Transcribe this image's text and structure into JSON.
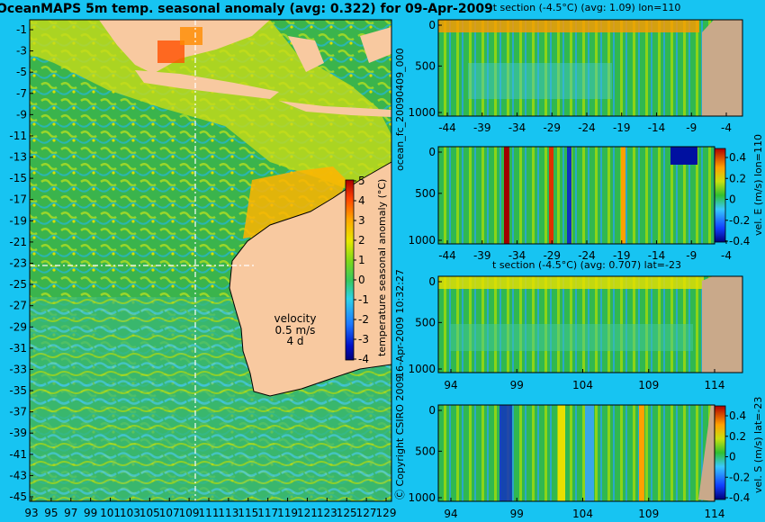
{
  "header": {
    "title": "OceanMAPS 5m temp. seasonal anomaly (avg: 0.322) for 09-Apr-2009"
  },
  "side_text": {
    "forecast_id": "ocean_fc_20090409_000",
    "run_date": "16-Apr-2009 10:32:27",
    "copyright": "Ⓒ Copyright CSIRO 2009"
  },
  "velocity_key": {
    "label": "velocity",
    "speed": "0.5 m/s",
    "second": "4 d"
  },
  "colors": {
    "background": "#17c4f2",
    "land": "#f8c9a0",
    "section_land": "#c9a98a",
    "crosshair": "#ffffff"
  },
  "chart_data": [
    {
      "id": "map",
      "type": "heatmap",
      "title": "OceanMAPS 5m temp. seasonal anomaly (avg: 0.322) for 09-Apr-2009",
      "x_ticks": [
        "93",
        "95",
        "97",
        "99",
        "101",
        "103",
        "105",
        "107",
        "109",
        "111",
        "113",
        "115",
        "117",
        "119",
        "121",
        "123",
        "125",
        "127",
        "129"
      ],
      "y_ticks": [
        "-1",
        "-3",
        "-5",
        "-7",
        "-9",
        "-11",
        "-13",
        "-15",
        "-17",
        "-19",
        "-21",
        "-23",
        "-25",
        "-27",
        "-29",
        "-31",
        "-33",
        "-35",
        "-37",
        "-39",
        "-41",
        "-43",
        "-45"
      ],
      "xlim": [
        93,
        130
      ],
      "ylim": [
        -45,
        0
      ],
      "crosshair": {
        "lon": 110,
        "lat": -23
      },
      "colorbar": {
        "label": "temperature seasonal anomaly (°C)",
        "ticks": [
          "-4",
          "-3",
          "-2",
          "-1",
          "0",
          "1",
          "2",
          "3",
          "4",
          "5"
        ],
        "range": [
          -4,
          5
        ]
      }
    },
    {
      "id": "section-t-lon",
      "type": "heatmap",
      "title": "t section (-4.5°C) (avg: 1.09) lon=110",
      "x_ticks": [
        "-44",
        "-39",
        "-34",
        "-29",
        "-24",
        "-19",
        "-14",
        "-9",
        "-4"
      ],
      "y_ticks": [
        "0",
        "500",
        "1000"
      ]
    },
    {
      "id": "section-ve-lon",
      "type": "heatmap",
      "title": "",
      "x_ticks": [
        "-44",
        "-39",
        "-34",
        "-29",
        "-24",
        "-19",
        "-14",
        "-9",
        "-4"
      ],
      "y_ticks": [
        "0",
        "500",
        "1000"
      ],
      "colorbar": {
        "label": "vel. E (m/s) lon=110",
        "ticks": [
          "-0.4",
          "-0.2",
          "0",
          "0.2",
          "0.4"
        ]
      }
    },
    {
      "id": "section-t-lat",
      "type": "heatmap",
      "title": "t section (-4.5°C) (avg: 0.707) lat=-23",
      "x_ticks": [
        "94",
        "99",
        "104",
        "109",
        "114"
      ],
      "y_ticks": [
        "0",
        "500",
        "1000"
      ]
    },
    {
      "id": "section-vs-lat",
      "type": "heatmap",
      "title": "",
      "x_ticks": [
        "94",
        "99",
        "104",
        "109",
        "114"
      ],
      "y_ticks": [
        "0",
        "500",
        "1000"
      ],
      "colorbar": {
        "label": "vel. S (m/s) lat=-23",
        "ticks": [
          "-0.4",
          "-0.2",
          "0",
          "0.2",
          "0.4"
        ]
      }
    }
  ]
}
